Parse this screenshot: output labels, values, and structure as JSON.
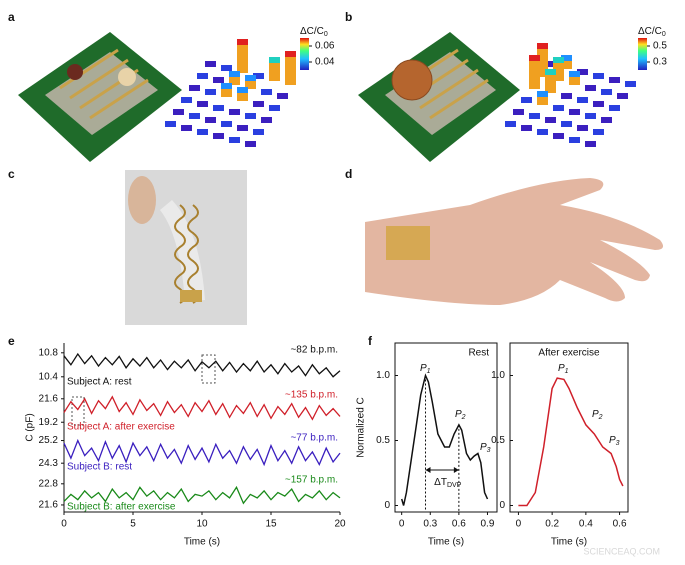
{
  "panel_labels": [
    "a",
    "b",
    "c",
    "d",
    "e",
    "f"
  ],
  "panel_a": {
    "colorbar_title": {
      "label": "ΔC/C",
      "sub": "0"
    },
    "clim": [
      0.03,
      0.07
    ],
    "colorbar_ticks": [
      0.06,
      0.04
    ]
  },
  "panel_b": {
    "colorbar_title": {
      "label": "ΔC/C",
      "sub": "0"
    },
    "clim": [
      0.2,
      0.6
    ],
    "colorbar_ticks": [
      0.5,
      0.3
    ]
  },
  "chart_data": [
    {
      "type": "line",
      "xlabel": "Time (s)",
      "ylabel": "C (pF)",
      "x": [
        0,
        0.5,
        1,
        1.5,
        2,
        2.5,
        3,
        3.5,
        4,
        4.5,
        5,
        5.5,
        6,
        6.5,
        7,
        7.5,
        8,
        8.5,
        9,
        9.5,
        10,
        10.5,
        11,
        11.5,
        12,
        12.5,
        13,
        13.5,
        14,
        14.5,
        15,
        15.5,
        16,
        16.5,
        17,
        17.5,
        18,
        18.5,
        19,
        19.5,
        20
      ],
      "xlim": [
        0,
        20
      ],
      "xticks": [
        0,
        5,
        10,
        15,
        20
      ],
      "series": [
        {
          "name": "Subject A: rest",
          "color": "#111111",
          "annotation": "~82 b.p.m.",
          "ylim": [
            10.23,
            10.93
          ],
          "yticks": [
            10.8,
            10.4
          ],
          "values": [
            10.75,
            10.6,
            10.78,
            10.62,
            10.75,
            10.58,
            10.72,
            10.6,
            10.74,
            10.55,
            10.7,
            10.58,
            10.72,
            10.55,
            10.68,
            10.52,
            10.66,
            10.55,
            10.68,
            10.5,
            10.65,
            10.55,
            10.66,
            10.5,
            10.64,
            10.48,
            10.62,
            10.5,
            10.66,
            10.48,
            10.6,
            10.45,
            10.62,
            10.48,
            10.58,
            10.42,
            10.6,
            10.45,
            10.55,
            10.4,
            10.5
          ]
        },
        {
          "name": "Subject A: after exercise",
          "color": "#d0202a",
          "annotation": "~135 b.p.m.",
          "ylim": [
            18.2,
            22.5
          ],
          "yticks": [
            21.6,
            19.2
          ],
          "values": [
            20.2,
            21.3,
            20.5,
            21.6,
            20.1,
            21.4,
            20.6,
            21.8,
            20.3,
            21.2,
            20.0,
            21.5,
            20.4,
            21.1,
            19.9,
            21.3,
            20.2,
            21.0,
            19.8,
            21.2,
            20.3,
            21.4,
            20.0,
            21.1,
            19.7,
            20.9,
            20.1,
            21.2,
            19.8,
            21.0,
            19.6,
            20.8,
            20.0,
            21.1,
            19.7,
            20.7,
            19.5,
            20.9,
            19.9,
            20.6,
            19.8
          ]
        },
        {
          "name": "Subject B: rest",
          "color": "#3a1fbf",
          "annotation": "~77 b.p.m.",
          "ylim": [
            23.95,
            25.5
          ],
          "yticks": [
            25.2,
            24.3
          ],
          "values": [
            25.1,
            24.5,
            25.2,
            24.6,
            24.9,
            24.4,
            25.15,
            24.5,
            25.0,
            24.35,
            25.1,
            24.6,
            24.95,
            24.4,
            25.05,
            24.5,
            24.85,
            24.3,
            25.0,
            24.45,
            24.9,
            24.35,
            25.05,
            24.5,
            24.8,
            24.3,
            24.95,
            24.45,
            24.85,
            24.25,
            25.0,
            24.4,
            24.8,
            24.3,
            24.95,
            24.4,
            24.75,
            24.25,
            24.9,
            24.35,
            24.7
          ]
        },
        {
          "name": "Subject B: after exercise",
          "color": "#1a8a1a",
          "annotation": "~157 b.p.m.",
          "ylim": [
            21.2,
            23.3
          ],
          "yticks": [
            22.8,
            21.6
          ],
          "values": [
            21.8,
            22.2,
            21.9,
            22.4,
            22.0,
            22.3,
            21.8,
            22.5,
            22.0,
            22.3,
            21.9,
            22.6,
            22.1,
            22.4,
            21.9,
            22.3,
            22.0,
            22.5,
            21.8,
            22.2,
            22.1,
            22.4,
            21.9,
            22.3,
            22.0,
            22.6,
            21.7,
            22.2,
            22.0,
            22.4,
            21.9,
            22.3,
            22.1,
            22.5,
            21.8,
            22.2,
            22.0,
            22.4,
            21.9,
            22.3,
            22.0
          ]
        }
      ]
    },
    {
      "type": "line",
      "title": "Rest",
      "xlabel": "Time (s)",
      "ylabel": "Normalized C",
      "color": "#111111",
      "x": [
        0,
        0.02,
        0.05,
        0.1,
        0.15,
        0.2,
        0.25,
        0.28,
        0.32,
        0.38,
        0.45,
        0.5,
        0.55,
        0.6,
        0.63,
        0.68,
        0.72,
        0.76,
        0.8,
        0.83,
        0.87,
        0.9
      ],
      "values": [
        0.05,
        0,
        0.1,
        0.35,
        0.6,
        0.85,
        1.0,
        0.95,
        0.8,
        0.55,
        0.45,
        0.45,
        0.55,
        0.62,
        0.58,
        0.4,
        0.35,
        0.38,
        0.4,
        0.33,
        0.1,
        0.05
      ],
      "xlim": [
        -0.07,
        1.0
      ],
      "xticks": [
        0,
        0.3,
        0.6,
        0.9
      ],
      "ylim": [
        -0.05,
        1.25
      ],
      "yticks": [
        0,
        0.5,
        {
          "value": 1,
          "label": "1.0"
        }
      ],
      "annotations": [
        {
          "label": "P",
          "sub": "1"
        },
        {
          "label": "P",
          "sub": "2"
        },
        {
          "label": "P",
          "sub": "3"
        }
      ],
      "interval_label": {
        "label": "ΔT",
        "sub": "DVP"
      }
    },
    {
      "type": "line",
      "title": "After exercise",
      "xlabel": "Time (s)",
      "color": "#d0202a",
      "x": [
        0,
        0.05,
        0.1,
        0.15,
        0.2,
        0.23,
        0.27,
        0.3,
        0.35,
        0.4,
        0.45,
        0.5,
        0.55,
        0.58,
        0.6,
        0.62
      ],
      "values": [
        0,
        0,
        0.1,
        0.45,
        0.9,
        0.98,
        0.97,
        0.9,
        0.75,
        0.62,
        0.55,
        0.45,
        0.4,
        0.3,
        0.2,
        0.15
      ],
      "xlim": [
        -0.05,
        0.65
      ],
      "xticks": [
        0,
        0.2,
        0.4,
        0.6
      ],
      "ylim": [
        -0.05,
        1.25
      ],
      "yticks": [
        0,
        0.5,
        {
          "value": 1,
          "label": "1.0"
        }
      ],
      "annotations": [
        {
          "label": "P",
          "sub": "1"
        },
        {
          "label": "P",
          "sub": "2"
        },
        {
          "label": "P",
          "sub": "3"
        }
      ]
    }
  ],
  "watermark": "SCIENCEAQ.COM"
}
